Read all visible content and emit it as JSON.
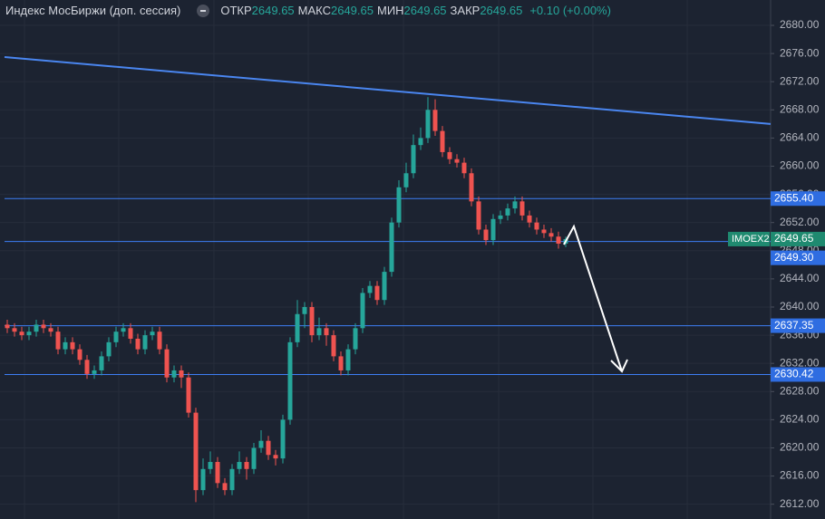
{
  "chart_data": {
    "type": "candlestick",
    "title": "Индекс МосБиржи (доп. сессия)",
    "stats": [
      {
        "label": "ОТКР",
        "value": "2649.65"
      },
      {
        "label": "МАКС",
        "value": "2649.65"
      },
      {
        "label": "МИН",
        "value": "2649.65"
      },
      {
        "label": "ЗАКР",
        "value": "2649.65"
      }
    ],
    "change": "+0.10 (+0.00%)",
    "symbol": "IMOEX2",
    "last_price": {
      "value": 2649.65,
      "label": "2649.65"
    },
    "up_color": "#26a69a",
    "down_color": "#ef5350",
    "level_color": "#3d7ef5",
    "trend_color": "#4a86f0",
    "grid": true,
    "ylim": [
      2609.9,
      2683.6
    ],
    "yticks": [
      {
        "value": 2612,
        "label": "2612.00"
      },
      {
        "value": 2616,
        "label": "2616.00"
      },
      {
        "value": 2620,
        "label": "2620.00"
      },
      {
        "value": 2624,
        "label": "2624.00"
      },
      {
        "value": 2628,
        "label": "2628.00"
      },
      {
        "value": 2632,
        "label": "2632.00"
      },
      {
        "value": 2636,
        "label": "2636.00"
      },
      {
        "value": 2640,
        "label": "2640.00"
      },
      {
        "value": 2644,
        "label": "2644.00"
      },
      {
        "value": 2648,
        "label": "2648.00"
      },
      {
        "value": 2652,
        "label": "2652.00"
      },
      {
        "value": 2656,
        "label": "2656.00"
      },
      {
        "value": 2660,
        "label": "2660.00"
      },
      {
        "value": 2664,
        "label": "2664.00"
      },
      {
        "value": 2668,
        "label": "2668.00"
      },
      {
        "value": 2672,
        "label": "2672.00"
      },
      {
        "value": 2676,
        "label": "2676.00"
      },
      {
        "value": 2680,
        "label": "2680.00"
      }
    ],
    "levels": [
      {
        "value": 2655.4,
        "label": "2655.40"
      },
      {
        "value": 2649.3,
        "label": "2649.30"
      },
      {
        "value": 2637.35,
        "label": "2637.35"
      },
      {
        "value": 2630.42,
        "label": "2630.42"
      }
    ],
    "trend_line": [
      2675.5,
      2666.0
    ],
    "open": [
      2637.5,
      2637,
      2636.5,
      2636,
      2636.5,
      2637.5,
      2637,
      2636.5,
      2634,
      2635,
      2634,
      2632.5,
      2630.5,
      2631,
      2633,
      2635,
      2636.5,
      2637,
      2635.5,
      2634,
      2636,
      2636.5,
      2634,
      2630,
      2631,
      2630,
      2625,
      2614,
      2617,
      2618,
      2615,
      2614,
      2617,
      2618,
      2617,
      2620,
      2621,
      2619,
      2618.5,
      2624,
      2635,
      2639,
      2640,
      2636,
      2637,
      2636,
      2633,
      2631,
      2634,
      2637,
      2642,
      2643,
      2641,
      2645,
      2652,
      2657,
      2659,
      2663,
      2664,
      2668,
      2665,
      2662,
      2661,
      2660.5,
      2659,
      2655,
      2651,
      2649.5,
      2652.5,
      2653,
      2654,
      2655,
      2653,
      2652,
      2651,
      2650.5,
      2650,
      2649
    ],
    "high": [
      2638.2,
      2637.7,
      2637.2,
      2637.2,
      2638.2,
      2638.2,
      2637.7,
      2637.2,
      2635.7,
      2635.7,
      2634.7,
      2633.2,
      2631.7,
      2633.7,
      2635.7,
      2637.2,
      2637.7,
      2637.7,
      2636.2,
      2636.7,
      2637.2,
      2637.2,
      2634.7,
      2631.7,
      2631.7,
      2630.7,
      2625.7,
      2618.5,
      2619.5,
      2618.7,
      2615.7,
      2617.7,
      2619.5,
      2618.7,
      2620.7,
      2622.5,
      2621.7,
      2619.7,
      2624.7,
      2635.7,
      2641,
      2640.7,
      2640.7,
      2638.5,
      2637.7,
      2636.7,
      2633.7,
      2634.7,
      2637.7,
      2642.7,
      2643.7,
      2643.7,
      2645.7,
      2652.7,
      2658,
      2660.5,
      2664.5,
      2665.5,
      2669.8,
      2669.5,
      2665.7,
      2662.7,
      2661.7,
      2661.2,
      2659.7,
      2655.7,
      2651.7,
      2653.2,
      2653.7,
      2654.7,
      2655.7,
      2655.7,
      2653.7,
      2652.7,
      2651.7,
      2651.2,
      2650.7,
      2650
    ],
    "low": [
      2636.3,
      2635.8,
      2635.3,
      2635.3,
      2635.8,
      2636.3,
      2635.8,
      2633.3,
      2633.3,
      2633.3,
      2631.8,
      2629.8,
      2629.8,
      2630.3,
      2632.3,
      2634.3,
      2635.8,
      2634.8,
      2633.3,
      2633.3,
      2635.3,
      2633.3,
      2629.3,
      2629.3,
      2628.5,
      2624.3,
      2612.3,
      2613.3,
      2616.3,
      2614.3,
      2613.3,
      2613.3,
      2616.3,
      2615.5,
      2616.3,
      2619.3,
      2618.3,
      2617.5,
      2617.8,
      2623.3,
      2634.3,
      2637,
      2635,
      2635.3,
      2634.5,
      2632.3,
      2630.3,
      2630.3,
      2633.3,
      2636.3,
      2641.3,
      2640.3,
      2640.3,
      2644.3,
      2651.3,
      2656.3,
      2658.3,
      2662.3,
      2663.3,
      2664.3,
      2661.3,
      2660.3,
      2659.8,
      2658.3,
      2654.3,
      2650.3,
      2648.8,
      2648.8,
      2651.8,
      2652.3,
      2653.3,
      2652.3,
      2651.3,
      2650.3,
      2649.8,
      2649.3,
      2648.3,
      2648.5
    ],
    "close": [
      2637,
      2636.5,
      2636,
      2636.5,
      2637.5,
      2637,
      2636.5,
      2634,
      2635,
      2634,
      2632.5,
      2630.5,
      2631,
      2633,
      2635,
      2636.5,
      2637,
      2635.5,
      2634,
      2636,
      2636.5,
      2634,
      2630,
      2631,
      2630,
      2625,
      2614,
      2617,
      2618,
      2615,
      2614,
      2617,
      2618,
      2617,
      2620,
      2621,
      2619,
      2618.5,
      2624,
      2635,
      2639,
      2640,
      2636,
      2637,
      2636,
      2633,
      2631,
      2634,
      2637,
      2642,
      2643,
      2641,
      2645,
      2652,
      2657,
      2659,
      2663,
      2664,
      2668,
      2665,
      2662,
      2661,
      2660.5,
      2659,
      2655,
      2651,
      2649.5,
      2652.5,
      2653,
      2654,
      2655,
      2653,
      2652,
      2651,
      2650.5,
      2650,
      2649,
      2649.65
    ]
  }
}
